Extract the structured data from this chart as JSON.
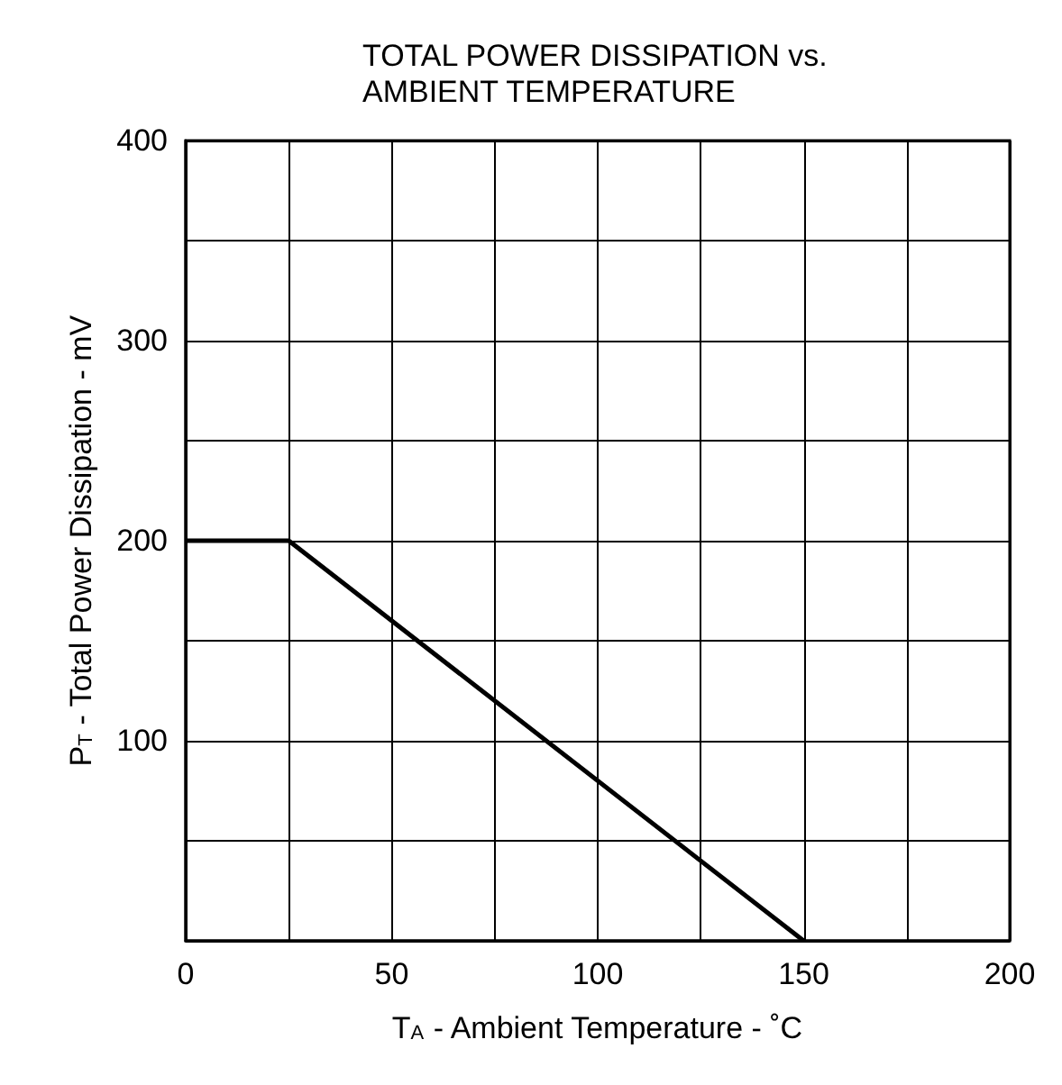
{
  "chart_data": {
    "type": "line",
    "title": "TOTAL POWER DISSIPATION vs.\nAMBIENT TEMPERATURE",
    "xlabel": "T$_{A}$ - Ambient Temperature - ˚C",
    "ylabel": "P$_{T}$ - Total Power Dissipation - mV",
    "x": [
      0,
      25,
      150
    ],
    "series": [
      {
        "color": "#000000",
        "values": [
          200,
          200,
          0
        ]
      }
    ],
    "xlim": [
      0,
      200
    ],
    "xticks": [
      0,
      {
        "value": 25,
        "label": null
      },
      50,
      {
        "value": 75,
        "label": null
      },
      100,
      {
        "value": 125,
        "label": null
      },
      150,
      {
        "value": 175,
        "label": null
      },
      200
    ],
    "ylim": [
      0,
      400
    ],
    "yticks": [
      {
        "value": 0,
        "label": null
      },
      {
        "value": 50,
        "label": null
      },
      100,
      {
        "value": 150,
        "label": null
      },
      200,
      {
        "value": 250,
        "label": null
      },
      300,
      {
        "value": 350,
        "label": null
      },
      400
    ],
    "grid": true,
    "marker": "none",
    "line_style": "solid"
  }
}
